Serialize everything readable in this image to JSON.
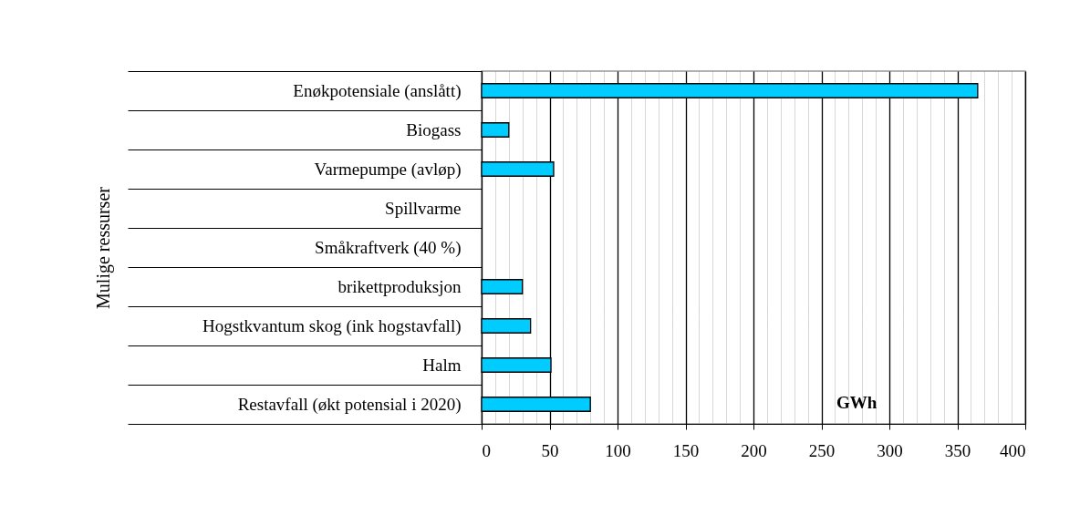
{
  "chart_data": {
    "type": "bar",
    "orientation": "horizontal",
    "ylabel": "Mulige ressurser",
    "xlabel": "GWh",
    "categories": [
      "Enøkpotensiale (anslått)",
      "Biogass",
      "Varmepumpe (avløp)",
      "Spillvarme",
      "Småkraftverk (40 %)",
      "brikettproduksjon",
      "Hogstkvantum skog (ink hogstavfall)",
      "Halm",
      "Restavfall (økt potensial i 2020)"
    ],
    "values": [
      365,
      20,
      53,
      null,
      null,
      30,
      36,
      51,
      80
    ],
    "color": "#00ccff",
    "xlim": [
      0,
      400
    ],
    "xticks": [
      0,
      {
        "value": 10,
        "label": null
      },
      {
        "value": 20,
        "label": null
      },
      {
        "value": 30,
        "label": null
      },
      {
        "value": 40,
        "label": null
      },
      50,
      {
        "value": 60,
        "label": null
      },
      {
        "value": 70,
        "label": null
      },
      {
        "value": 80,
        "label": null
      },
      {
        "value": 90,
        "label": null
      },
      100,
      {
        "value": 110,
        "label": null
      },
      {
        "value": 120,
        "label": null
      },
      {
        "value": 130,
        "label": null
      },
      {
        "value": 140,
        "label": null
      },
      150,
      {
        "value": 160,
        "label": null
      },
      {
        "value": 170,
        "label": null
      },
      {
        "value": 180,
        "label": null
      },
      {
        "value": 190,
        "label": null
      },
      200,
      {
        "value": 210,
        "label": null
      },
      {
        "value": 220,
        "label": null
      },
      {
        "value": 230,
        "label": null
      },
      {
        "value": 240,
        "label": null
      },
      250,
      {
        "value": 260,
        "label": null
      },
      {
        "value": 270,
        "label": null
      },
      {
        "value": 280,
        "label": null
      },
      {
        "value": 290,
        "label": null
      },
      300,
      {
        "value": 310,
        "label": null
      },
      {
        "value": 320,
        "label": null
      },
      {
        "value": 330,
        "label": null
      },
      {
        "value": 340,
        "label": null
      },
      350,
      {
        "value": 360,
        "label": null
      },
      {
        "value": 370,
        "label": null
      },
      {
        "value": 380,
        "label": null
      },
      {
        "value": 390,
        "label": null
      },
      400
    ],
    "grid": "x"
  }
}
